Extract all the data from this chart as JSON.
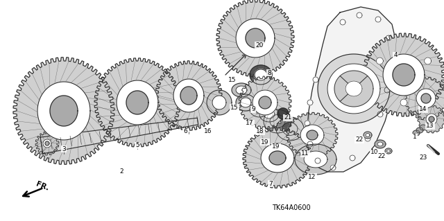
{
  "bg_color": "#ffffff",
  "fig_width": 6.4,
  "fig_height": 3.19,
  "dpi": 100,
  "diagram_code": "TK64A0600",
  "line_color": "#2a2a2a",
  "gear_fill": "#d8d8d8",
  "gear_dark": "#888888",
  "gear_lw": 0.7
}
